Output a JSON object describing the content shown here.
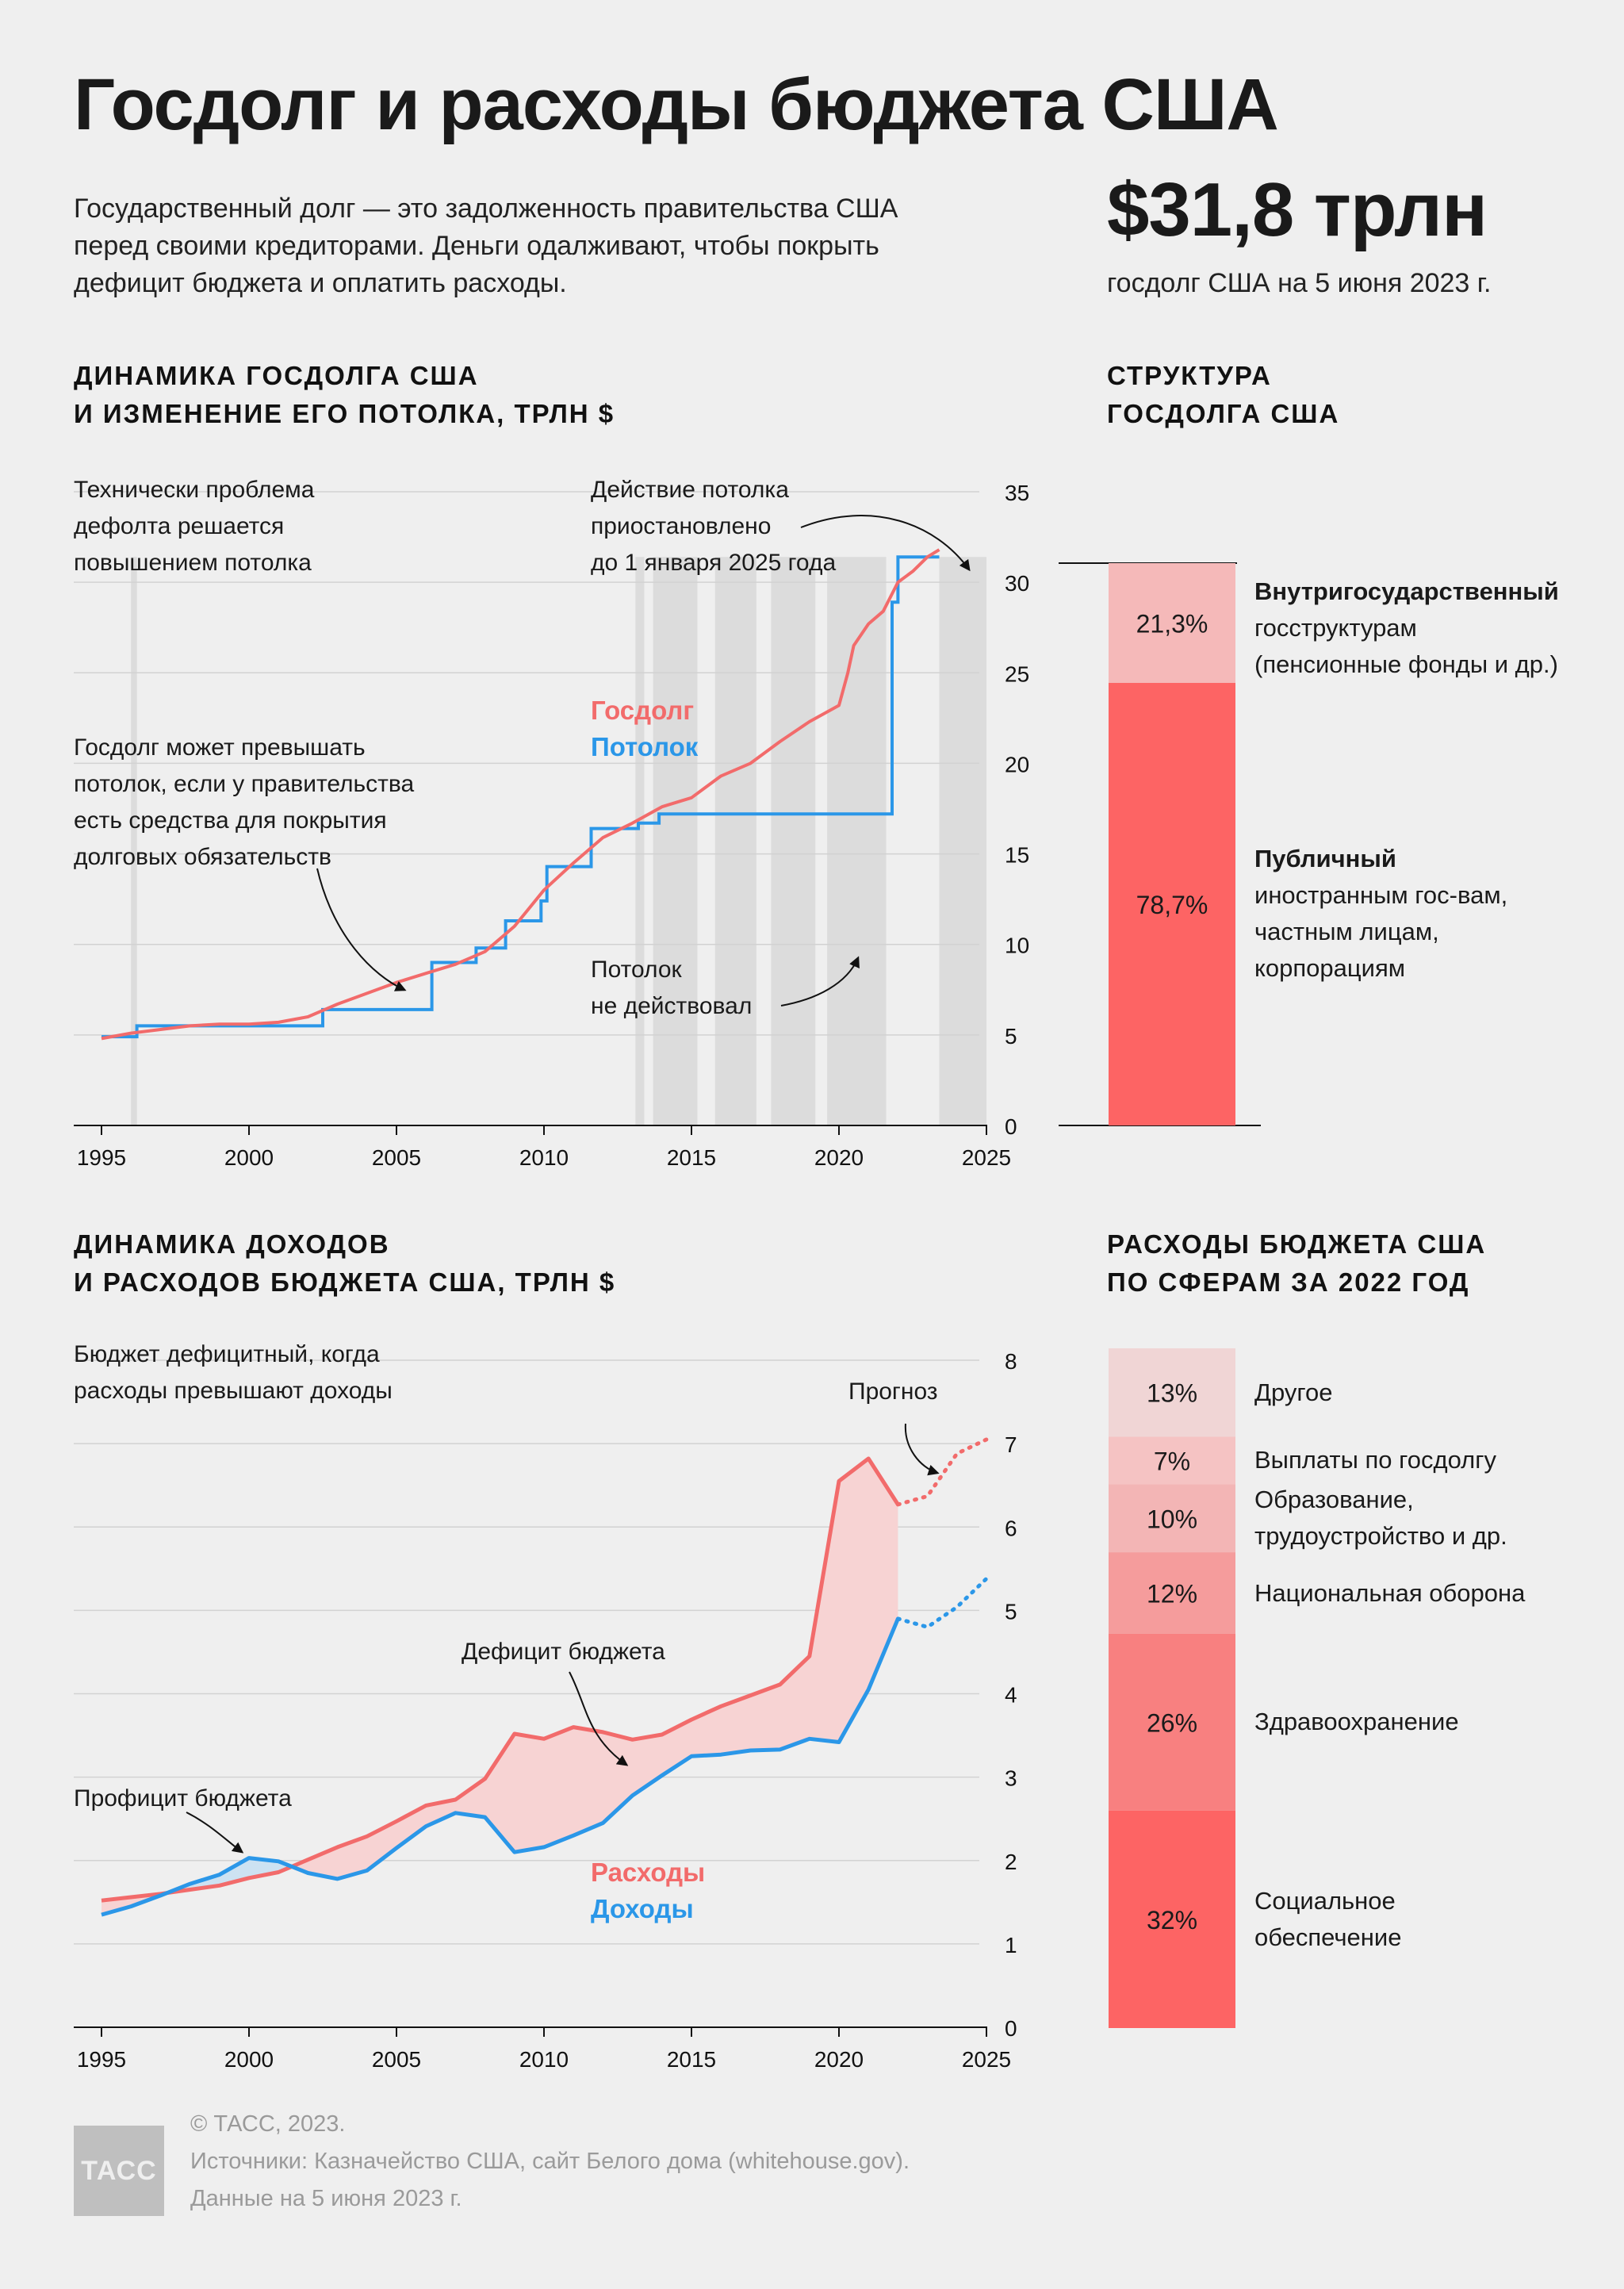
{
  "title": "Госдолг и расходы бюджета США",
  "intro": {
    "line1": "Государственный долг — это задолженность правительства США",
    "line2": "перед своими кредиторами. Деньги одалживают, чтобы покрыть",
    "line3": "дефицит бюджета и оплатить расходы."
  },
  "headline": {
    "value": "$31,8 трлн",
    "caption": "госдолг США на 5 июня 2023 г."
  },
  "debt_section": {
    "heading1": "ДИНАМИКА ГОСДОЛГА США",
    "heading2": "И ИЗМЕНЕНИЕ ЕГО ПОТОЛКА, ТРЛН $",
    "note_tech": [
      "Технически проблема",
      "дефолта решается",
      "повышением потолка"
    ],
    "note_suspended": [
      "Действие потолка",
      "приостановлено",
      "до 1 января 2025 года"
    ],
    "note_exceed": [
      "Госдолг может превышать",
      "потолок, если у правительства",
      "есть средства для покрытия",
      "долговых обязательств"
    ],
    "note_inactive": [
      "Потолок",
      "не действовал"
    ],
    "legend_debt": "Госдолг",
    "legend_ceiling": "Потолок"
  },
  "structure_section": {
    "heading1": "СТРУКТУРА",
    "heading2": "ГОСДОЛГА США",
    "intra": {
      "pct": "21,3%",
      "name": "Внутригосударственный",
      "desc1": "госструктурам",
      "desc2": "(пенсионные фонды и др.)",
      "share": 21.3
    },
    "public": {
      "pct": "78,7%",
      "name": "Публичный",
      "desc1": "иностранным гос-вам,",
      "desc2": "частным лицам,",
      "desc3": "корпорациям",
      "share": 78.7
    }
  },
  "budget_section": {
    "heading1": "ДИНАМИКА ДОХОДОВ",
    "heading2": "И РАСХОДОВ БЮДЖЕТА США, ТРЛН $",
    "note_deficit_rule": [
      "Бюджет дефицитный, когда",
      "расходы превышают доходы"
    ],
    "note_forecast": "Прогноз",
    "note_deficit": "Дефицит бюджета",
    "note_surplus": "Профицит бюджета",
    "legend_outlays": "Расходы",
    "legend_receipts": "Доходы"
  },
  "spending_section": {
    "heading1": "РАСХОДЫ БЮДЖЕТА США",
    "heading2": "ПО СФЕРАМ ЗА 2022 ГОД",
    "items": [
      {
        "pct": "13%",
        "value": 13,
        "label1": "Другое",
        "label2": "",
        "color": "#f0d5d5"
      },
      {
        "pct": "7%",
        "value": 7,
        "label1": "Выплаты по госдолгу",
        "label2": "",
        "color": "#f5c3c3"
      },
      {
        "pct": "10%",
        "value": 10,
        "label1": "Образование,",
        "label2": "трудоустройство и др.",
        "color": "#f3b5b5"
      },
      {
        "pct": "12%",
        "value": 12,
        "label1": "Национальная оборона",
        "label2": "",
        "color": "#f59c9c"
      },
      {
        "pct": "26%",
        "value": 26,
        "label1": "Здравоохранение",
        "label2": "",
        "color": "#f88080"
      },
      {
        "pct": "32%",
        "value": 32,
        "label1": "Социальное",
        "label2": "обеспечение",
        "color": "#fd6464"
      }
    ]
  },
  "footer": {
    "line1": "© ТАСС, 2023.",
    "line2": "Источники: Казначейство США, сайт Белого дома (whitehouse.gov).",
    "line3": "Данные на 5 июня 2023 г.",
    "logo": "ТАСС"
  },
  "colors": {
    "red": "#f26b6b",
    "blue": "#2b97e8",
    "fill_red": "#f7d3d3",
    "fill_blue": "#cde2f2",
    "shade": "#dcdcdc"
  },
  "chart_data": [
    {
      "type": "line",
      "title": "ДИНАМИКА ГОСДОЛГА США И ИЗМЕНЕНИЕ ЕГО ПОТОЛКА, ТРЛН $",
      "xlim": [
        1995,
        2025
      ],
      "ylim": [
        0,
        35
      ],
      "x_ticks": [
        1995,
        2000,
        2005,
        2010,
        2015,
        2020,
        2025
      ],
      "y_ticks": [
        0,
        5,
        10,
        15,
        20,
        25,
        30,
        35
      ],
      "series": [
        {
          "name": "Госдолг",
          "x": [
            1995,
            1996,
            1997,
            1998,
            1999,
            2000,
            2001,
            2002,
            2003,
            2004,
            2005,
            2006,
            2007,
            2008,
            2009,
            2010,
            2011,
            2012,
            2013,
            2014,
            2015,
            2016,
            2017,
            2018,
            2019,
            2020,
            2020.3,
            2020.5,
            2021,
            2021.5,
            2022,
            2022.5,
            2023,
            2023.4
          ],
          "values": [
            4.8,
            5.1,
            5.3,
            5.5,
            5.6,
            5.6,
            5.7,
            6.0,
            6.7,
            7.3,
            7.9,
            8.4,
            8.9,
            9.6,
            11.0,
            13.0,
            14.5,
            15.9,
            16.7,
            17.6,
            18.1,
            19.3,
            20.0,
            21.2,
            22.3,
            23.2,
            25.0,
            26.5,
            27.7,
            28.4,
            30.0,
            30.6,
            31.4,
            31.8
          ]
        },
        {
          "name": "Потолок",
          "x": [
            1995,
            1996.2,
            1996.2,
            2002.5,
            2002.5,
            2003.4,
            2003.4,
            2006.2,
            2006.2,
            2007.7,
            2007.7,
            2008.7,
            2008.7,
            2009.9,
            2009.9,
            2010.1,
            2010.1,
            2011.6,
            2011.6,
            2013.2,
            2013.2,
            2013.9,
            2013.9,
            2021.8,
            2021.8,
            2022.0,
            2022.0,
            2023.4
          ],
          "values": [
            4.9,
            4.9,
            5.5,
            5.5,
            6.4,
            6.4,
            6.4,
            6.4,
            9.0,
            9.0,
            9.8,
            9.8,
            11.3,
            11.3,
            12.4,
            12.4,
            14.3,
            14.3,
            16.4,
            16.4,
            16.7,
            16.7,
            17.2,
            17.2,
            28.9,
            28.9,
            31.4,
            31.4
          ]
        }
      ],
      "ceiling_inactive_periods": [
        [
          1996.0,
          1996.2
        ],
        [
          2013.1,
          2013.4
        ],
        [
          2013.7,
          2015.2
        ],
        [
          2015.8,
          2017.2
        ],
        [
          2017.7,
          2019.2
        ],
        [
          2019.6,
          2021.6
        ],
        [
          2023.4,
          2025.0
        ]
      ]
    },
    {
      "type": "bar",
      "title": "СТРУКТУРА ГОСДОЛГА США",
      "categories": [
        "Внутригосударственный",
        "Публичный"
      ],
      "values": [
        21.3,
        78.7
      ]
    },
    {
      "type": "line",
      "title": "ДИНАМИКА ДОХОДОВ И РАСХОДОВ БЮДЖЕТА США, ТРЛН $",
      "xlim": [
        1995,
        2025
      ],
      "ylim": [
        0,
        8
      ],
      "x_ticks": [
        1995,
        2000,
        2005,
        2010,
        2015,
        2020,
        2025
      ],
      "y_ticks": [
        0,
        1,
        2,
        3,
        4,
        5,
        6,
        7,
        8
      ],
      "x": [
        1995,
        1996,
        1997,
        1998,
        1999,
        2000,
        2001,
        2002,
        2003,
        2004,
        2005,
        2006,
        2007,
        2008,
        2009,
        2010,
        2011,
        2012,
        2013,
        2014,
        2015,
        2016,
        2017,
        2018,
        2019,
        2020,
        2021,
        2022
      ],
      "series": [
        {
          "name": "Расходы",
          "values": [
            1.52,
            1.56,
            1.6,
            1.65,
            1.7,
            1.79,
            1.86,
            2.01,
            2.16,
            2.29,
            2.47,
            2.66,
            2.73,
            2.98,
            3.52,
            3.46,
            3.6,
            3.54,
            3.45,
            3.51,
            3.69,
            3.85,
            3.98,
            4.11,
            4.45,
            6.55,
            6.82,
            6.27
          ]
        },
        {
          "name": "Доходы",
          "values": [
            1.35,
            1.45,
            1.58,
            1.72,
            1.83,
            2.03,
            1.99,
            1.85,
            1.78,
            1.88,
            2.15,
            2.41,
            2.57,
            2.52,
            2.1,
            2.16,
            2.3,
            2.45,
            2.78,
            3.02,
            3.25,
            3.27,
            3.32,
            3.33,
            3.46,
            3.42,
            4.05,
            4.9
          ]
        },
        {
          "name": "Расходы (прогноз)",
          "x": [
            2022,
            2023,
            2024,
            2025
          ],
          "values": [
            6.27,
            6.37,
            6.88,
            7.05
          ]
        },
        {
          "name": "Доходы (прогноз)",
          "x": [
            2022,
            2023,
            2024,
            2025
          ],
          "values": [
            4.9,
            4.8,
            5.04,
            5.38
          ]
        }
      ]
    },
    {
      "type": "bar",
      "title": "РАСХОДЫ БЮДЖЕТА США ПО СФЕРАМ ЗА 2022 ГОД",
      "categories": [
        "Другое",
        "Выплаты по госдолгу",
        "Образование, трудоустройство и др.",
        "Национальная оборона",
        "Здравоохранение",
        "Социальное обеспечение"
      ],
      "values": [
        13,
        7,
        10,
        12,
        26,
        32
      ]
    }
  ]
}
